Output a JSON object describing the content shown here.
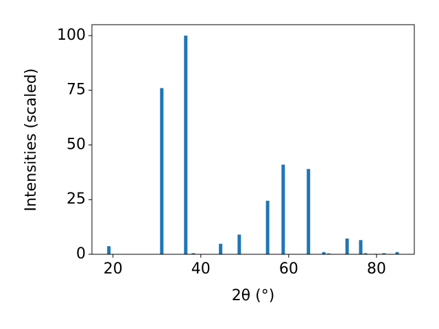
{
  "chart_data": {
    "type": "bar",
    "x": [
      19.06,
      31.1,
      36.56,
      38.3,
      44.5,
      48.75,
      55.2,
      58.75,
      64.5,
      68.0,
      69.1,
      73.3,
      76.4,
      77.5,
      79.7,
      81.7,
      84.7
    ],
    "values": [
      3.7,
      76,
      100,
      0.5,
      4.8,
      9,
      24.5,
      41,
      39,
      1,
      0.4,
      7.2,
      6.5,
      0.5,
      0.2,
      0.5,
      1
    ],
    "color": "#1f77b4",
    "x_label": "2θ (°)",
    "y_label": "Intensities (scaled)",
    "xlim": [
      15.2,
      88.6
    ],
    "xticks": [
      20,
      40,
      60,
      80
    ],
    "ylim": [
      0,
      105
    ],
    "yticks": [
      0,
      25,
      50,
      75,
      100
    ],
    "grid": false
  }
}
